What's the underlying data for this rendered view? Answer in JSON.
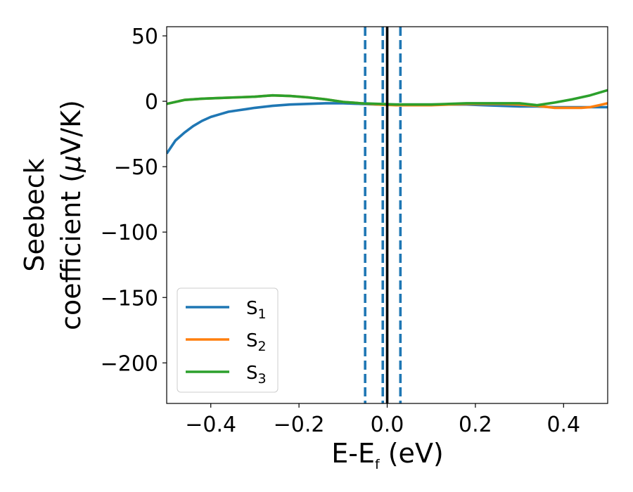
{
  "chart_data": {
    "type": "line",
    "xlabel": {
      "main": "E-E",
      "sub": "f",
      "unit": " (eV)"
    },
    "ylabel": {
      "line1": "Seebeck",
      "line2_prefix": "coefficient  (",
      "mu": "μ",
      "line2_suffix": "V/K)"
    },
    "xlim": [
      -0.5,
      0.5
    ],
    "ylim": [
      -231,
      57
    ],
    "x_ticks": [
      -0.4,
      -0.2,
      0.0,
      0.2,
      0.4
    ],
    "x_tick_labels": [
      "−0.4",
      "−0.2",
      "0.0",
      "0.2",
      "0.4"
    ],
    "y_ticks": [
      50,
      0,
      -50,
      -100,
      -150,
      -200
    ],
    "y_tick_labels": [
      "50",
      "0",
      "−50",
      "−100",
      "−150",
      "−200"
    ],
    "grid": false,
    "legend_position": "lower-left",
    "series": [
      {
        "name": "S",
        "sub": "1",
        "color": "#1f77b4",
        "x": [
          -0.5,
          -0.48,
          -0.46,
          -0.44,
          -0.42,
          -0.4,
          -0.38,
          -0.36,
          -0.34,
          -0.32,
          -0.3,
          -0.26,
          -0.22,
          -0.18,
          -0.14,
          -0.1,
          -0.06,
          -0.02,
          0.02,
          0.06,
          0.1,
          0.14,
          0.18,
          0.22,
          0.26,
          0.3,
          0.34,
          0.38,
          0.42,
          0.46,
          0.5
        ],
        "y": [
          -40,
          -30,
          -24,
          -19,
          -15,
          -12,
          -10,
          -8,
          -7,
          -6,
          -5,
          -3.5,
          -2.5,
          -2,
          -1.5,
          -1.5,
          -2,
          -2.5,
          -2.5,
          -2.5,
          -2.5,
          -2.5,
          -2.5,
          -3,
          -3.5,
          -4,
          -4,
          -4.5,
          -4.5,
          -4.5,
          -4.5
        ]
      },
      {
        "name": "S",
        "sub": "2",
        "color": "#ff7f0e",
        "x": [
          -0.5,
          -0.46,
          -0.42,
          -0.38,
          -0.34,
          -0.3,
          -0.26,
          -0.22,
          -0.18,
          -0.14,
          -0.1,
          -0.06,
          -0.02,
          0.02,
          0.06,
          0.1,
          0.14,
          0.18,
          0.22,
          0.26,
          0.3,
          0.34,
          0.38,
          0.42,
          0.44,
          0.46,
          0.48,
          0.5
        ],
        "y": [
          -2,
          1,
          2,
          2.5,
          3,
          3.5,
          4.5,
          4,
          3,
          1.5,
          -0.5,
          -1.5,
          -2.5,
          -3,
          -3,
          -3,
          -2.5,
          -2,
          -2,
          -2,
          -2.5,
          -3.5,
          -5,
          -5,
          -5,
          -4.5,
          -3,
          -1.5
        ]
      },
      {
        "name": "S",
        "sub": "3",
        "color": "#2ca02c",
        "x": [
          -0.5,
          -0.46,
          -0.42,
          -0.38,
          -0.34,
          -0.3,
          -0.26,
          -0.22,
          -0.18,
          -0.14,
          -0.1,
          -0.06,
          -0.02,
          0.02,
          0.06,
          0.1,
          0.14,
          0.18,
          0.22,
          0.26,
          0.3,
          0.34,
          0.38,
          0.42,
          0.46,
          0.5
        ],
        "y": [
          -2,
          1,
          2,
          2.5,
          3,
          3.5,
          4.5,
          4,
          3,
          1.5,
          -0.5,
          -1.5,
          -2,
          -2.5,
          -2.5,
          -2.5,
          -2,
          -1.5,
          -1.5,
          -1.5,
          -1.5,
          -3,
          -1,
          1.5,
          4.5,
          8.5
        ]
      }
    ],
    "vertical_lines": [
      {
        "x": -0.05,
        "color": "#1f77b4",
        "style": "dashed"
      },
      {
        "x": -0.01,
        "color": "#1f77b4",
        "style": "dashed"
      },
      {
        "x": 0.03,
        "color": "#1f77b4",
        "style": "dashed"
      },
      {
        "x": 0.0,
        "color": "#000000",
        "style": "solid"
      }
    ]
  }
}
